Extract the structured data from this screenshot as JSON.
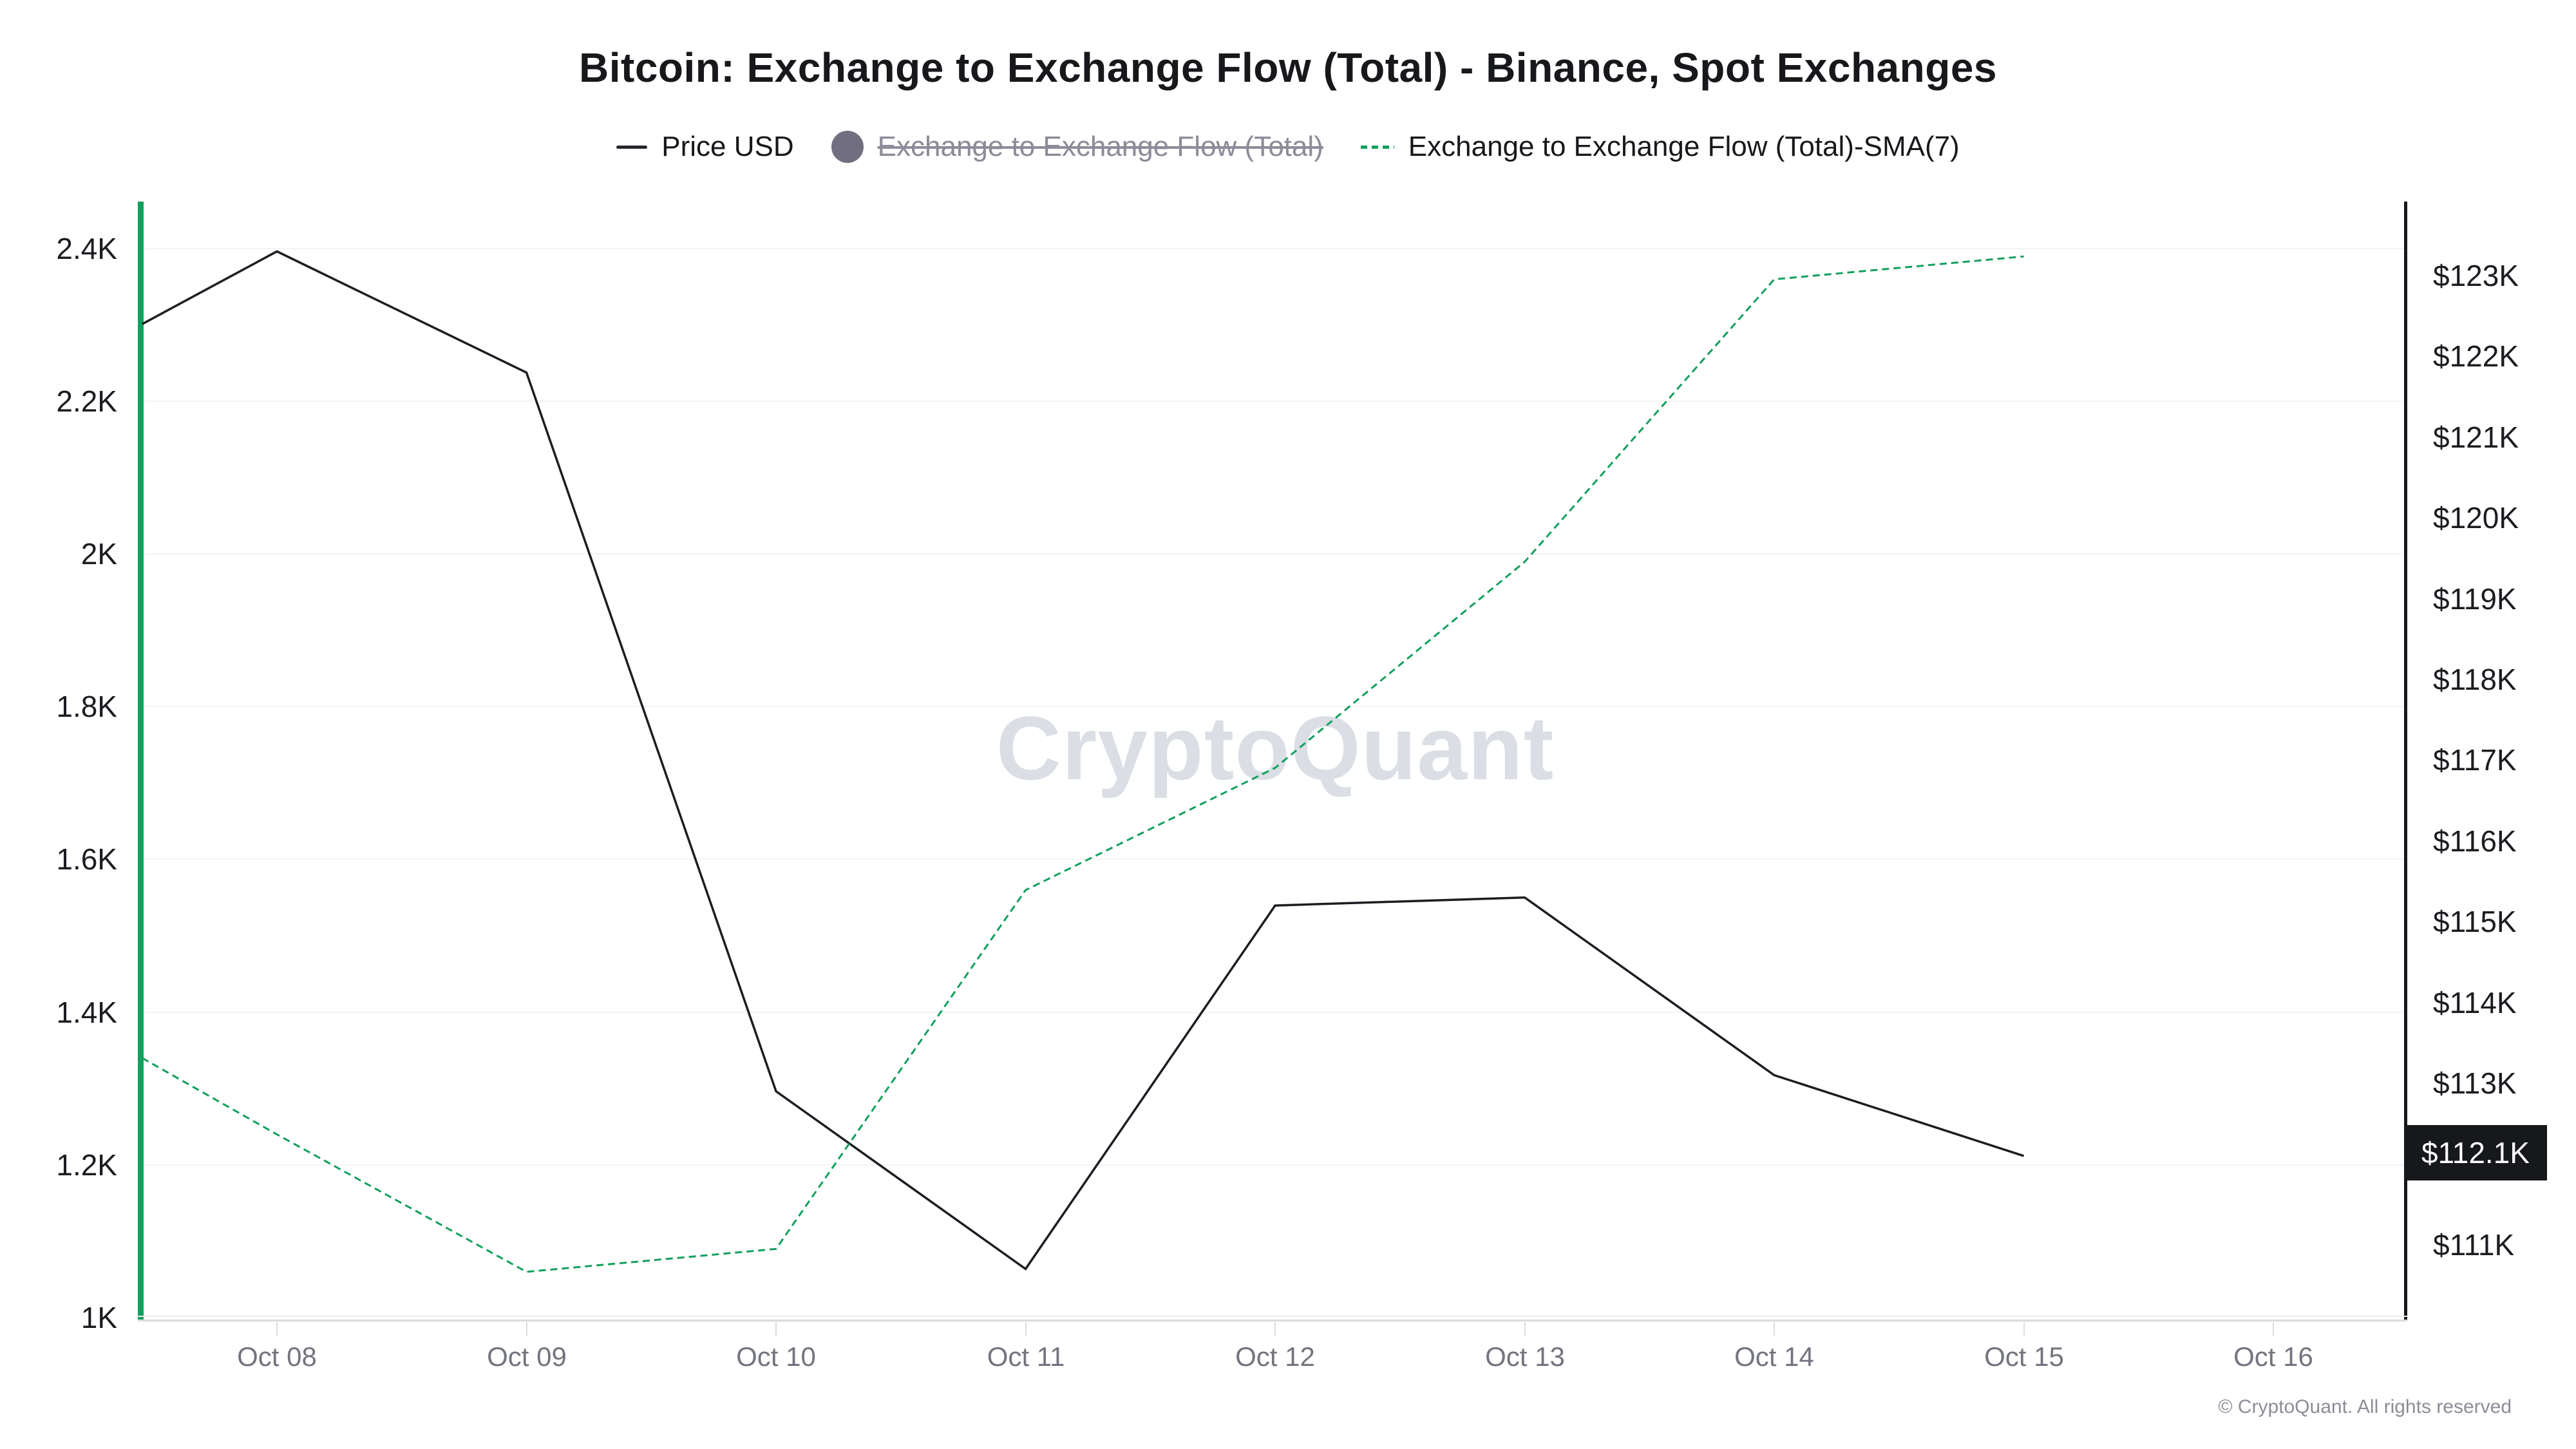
{
  "header": {
    "title": "Bitcoin: Exchange to Exchange Flow (Total) - Binance, Spot Exchanges"
  },
  "legend": {
    "items": [
      {
        "label": "Price USD",
        "marker": "line-icon",
        "color": "#26272c",
        "disabled": false
      },
      {
        "label": "Exchange to Exchange Flow (Total)",
        "marker": "circle-icon",
        "color": "#716e80",
        "disabled": true
      },
      {
        "label": "Exchange to Exchange Flow (Total)-SMA(7)",
        "marker": "dashed-line-icon",
        "color": "#11a05d",
        "disabled": false
      }
    ]
  },
  "watermark": "CryptoQuant",
  "footer": {
    "copyright": "© CryptoQuant. All rights reserved"
  },
  "price_badge": {
    "label": "$112.1K",
    "bg": "#17181c",
    "text_color": "#ffffff"
  },
  "chart_data": {
    "type": "line",
    "title": "Bitcoin: Exchange to Exchange Flow (Total) - Binance, Spot Exchanges",
    "categories": [
      "Oct 08",
      "Oct 09",
      "Oct 10",
      "Oct 11",
      "Oct 12",
      "Oct 13",
      "Oct 14",
      "Oct 15",
      "Oct 16"
    ],
    "x_days": [
      0.46,
      1,
      2,
      3,
      4,
      5,
      6,
      7,
      8
    ],
    "x_note": "first point is at the unlabeled left edge of the window (~Oct 07); no data plotted for Oct 16",
    "series": [
      {
        "name": "Price USD",
        "axis": "right",
        "style": "solid",
        "color": "#1c1d22",
        "unit": "K USD",
        "values": [
          122.4,
          123.3,
          121.8,
          112.9,
          110.7,
          115.2,
          115.3,
          113.1,
          112.1
        ]
      },
      {
        "name": "Exchange to Exchange Flow (Total)-SMA(7)",
        "axis": "left",
        "style": "dashed",
        "color": "#11a05d",
        "unit": "K BTC",
        "values": [
          1.34,
          1.24,
          1.06,
          1.09,
          1.56,
          1.72,
          1.99,
          2.36,
          2.39
        ]
      }
    ],
    "y_left": {
      "ticks": [
        "2.4K",
        "2.2K",
        "2K",
        "1.8K",
        "1.6K",
        "1.4K",
        "1.2K",
        "1K"
      ],
      "min": 1000,
      "max": 2460,
      "grid": true
    },
    "y_right": {
      "ticks": [
        "$123K",
        "$122K",
        "$121K",
        "$120K",
        "$119K",
        "$118K",
        "$117K",
        "$116K",
        "$115K",
        "$114K",
        "$113K",
        "$111K"
      ],
      "min": 110100,
      "max": 123900,
      "current": "$112.1K"
    },
    "legend_position": "top",
    "legend_entries": [
      "Price USD",
      "Exchange to Exchange Flow (Total)",
      "Exchange to Exchange Flow (Total)-SMA(7)"
    ]
  }
}
